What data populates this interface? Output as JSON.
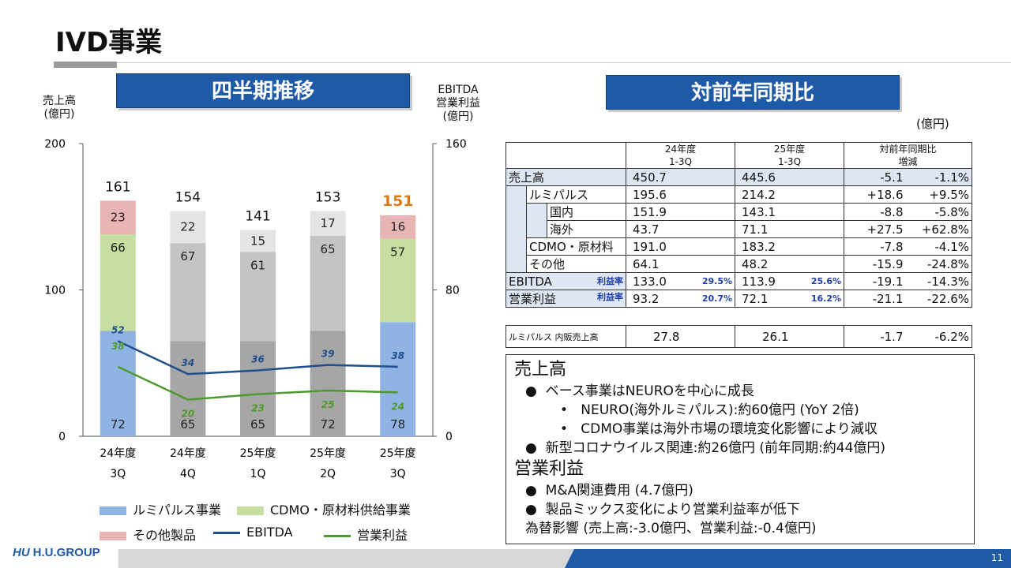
{
  "title": "IVD事業",
  "left_banner": "四半期推移",
  "right_banner": "対前年同期比",
  "left_axis_label": [
    "売上高",
    "(億円)"
  ],
  "right_axis_label": [
    "EBITDA",
    "営業利益",
    "(億円)"
  ],
  "unit_label": "(億円)",
  "colors": {
    "lumi": "#8fb4e3",
    "lumi_grey": "#a6a6a6",
    "cdmo": "#c6dea0",
    "cdmo_grey": "#c4c4c4",
    "other": "#e8b4b4",
    "other_grey": "#e4e4e4",
    "ebitda": "#1f4e8c",
    "op": "#4e9a2e",
    "accent_total": "#d97a1a",
    "banner": "#1f5aa6"
  },
  "chart_data": {
    "type": "bar",
    "stacked": true,
    "categories": [
      [
        "24年度",
        "3Q"
      ],
      [
        "24年度",
        "4Q"
      ],
      [
        "25年度",
        "1Q"
      ],
      [
        "25年度",
        "2Q"
      ],
      [
        "25年度",
        "3Q"
      ]
    ],
    "series": [
      {
        "name": "ルミパルス事業",
        "values": [
          72,
          65,
          65,
          72,
          78
        ]
      },
      {
        "name": "CDMO・原材料供給事業",
        "values": [
          66,
          67,
          61,
          65,
          57
        ]
      },
      {
        "name": "その他製品",
        "values": [
          23,
          22,
          15,
          17,
          16
        ]
      }
    ],
    "totals": [
      161,
      154,
      141,
      153,
      151
    ],
    "lines": [
      {
        "name": "EBITDA",
        "axis": "right",
        "values": [
          52,
          34,
          36,
          39,
          38
        ]
      },
      {
        "name": "営業利益",
        "axis": "right",
        "values": [
          38,
          20,
          23,
          25,
          24
        ]
      }
    ],
    "left_axis": {
      "ylim": [
        0,
        200
      ],
      "ticks": [
        "0",
        "100",
        "200"
      ]
    },
    "right_axis": {
      "ylim": [
        0,
        160
      ],
      "ticks": [
        "0",
        "80",
        "160"
      ]
    },
    "legend": [
      "ルミパルス事業",
      "CDMO・原材料供給事業",
      "その他製品",
      "EBITDA",
      "営業利益"
    ]
  },
  "table": {
    "headers": {
      "col1": [
        "24年度",
        "1-3Q"
      ],
      "col2": [
        "25年度",
        "1-3Q"
      ],
      "col3": [
        "対前年同期比",
        "増減"
      ]
    },
    "rows": [
      {
        "label": "売上高",
        "v1": "450.7",
        "v2": "445.6",
        "d": "-5.1",
        "p": "-1.1%"
      },
      {
        "label": "ルミパルス",
        "v1": "195.6",
        "v2": "214.2",
        "d": "+18.6",
        "p": "+9.5%"
      },
      {
        "label": "国内",
        "v1": "151.9",
        "v2": "143.1",
        "d": "-8.8",
        "p": "-5.8%"
      },
      {
        "label": "海外",
        "v1": "43.7",
        "v2": "71.1",
        "d": "+27.5",
        "p": "+62.8%"
      },
      {
        "label": "CDMO・原材料",
        "v1": "191.0",
        "v2": "183.2",
        "d": "-7.8",
        "p": "-4.1%"
      },
      {
        "label": "その他",
        "v1": "64.1",
        "v2": "48.2",
        "d": "-15.9",
        "p": "-24.8%"
      },
      {
        "label": "EBITDA",
        "rate_label": "利益率",
        "v1": "133.0",
        "r1": "29.5%",
        "v2": "113.9",
        "r2": "25.6%",
        "d": "-19.1",
        "p": "-14.3%"
      },
      {
        "label": "営業利益",
        "rate_label": "利益率",
        "v1": "93.2",
        "r1": "20.7%",
        "v2": "72.1",
        "r2": "16.2%",
        "d": "-21.1",
        "p": "-22.6%"
      }
    ],
    "extra": {
      "label": "ルミパルス 内販売上高",
      "v1": "27.8",
      "v2": "26.1",
      "d": "-1.7",
      "p": "-6.2%"
    }
  },
  "notes": {
    "h1": "売上高",
    "b1": "ベース事業はNEUROを中心に成長",
    "b1a": "NEURO(海外ルミパルス):約60億円 (YoY 2倍)",
    "b1b": "CDMO事業は海外市場の環境変化影響により減収",
    "b2": "新型コロナウイルス関連:約26億円 (前年同期:約44億円)",
    "h2": "営業利益",
    "b3": "M&A関連費用 (4.7億円)",
    "b4": "製品ミックス変化により営業利益率が低下",
    "fx": "為替影響 (売上高:-3.0億円、営業利益:-0.4億円)"
  },
  "footer": {
    "logo": "H.U.GROUP",
    "page": "11"
  }
}
